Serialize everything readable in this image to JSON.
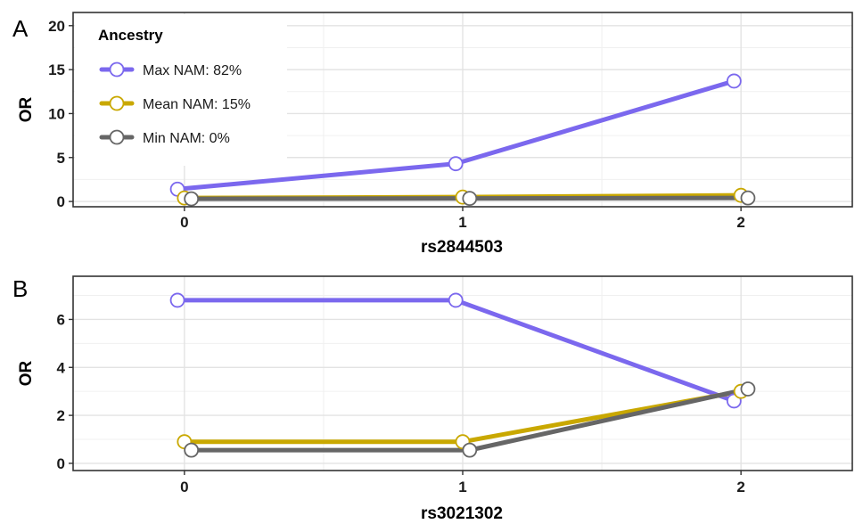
{
  "chart_data": [
    {
      "panel": "A",
      "type": "line",
      "xlabel": "rs2844503",
      "ylabel": "OR",
      "categories": [
        "0",
        "1",
        "2"
      ],
      "ylim": [
        -0.6,
        21.5
      ],
      "yticks": [
        0,
        5,
        10,
        15,
        20
      ],
      "grid": true,
      "legend": {
        "title": "Ancestry",
        "placement": "top-left",
        "entries": [
          "Max NAM: 82%",
          "Mean NAM: 15%",
          "Min NAM: 0%"
        ]
      },
      "series": [
        {
          "name": "Max NAM: 82%",
          "color": "#7B68EE",
          "values": [
            1.4,
            4.3,
            13.7
          ]
        },
        {
          "name": "Mean NAM: 15%",
          "color": "#C9A800",
          "values": [
            0.4,
            0.5,
            0.7
          ]
        },
        {
          "name": "Min NAM: 0%",
          "color": "#666666",
          "values": [
            0.3,
            0.35,
            0.4
          ]
        }
      ]
    },
    {
      "panel": "B",
      "type": "line",
      "xlabel": "rs3021302",
      "ylabel": "OR",
      "categories": [
        "0",
        "1",
        "2"
      ],
      "ylim": [
        -0.3,
        7.8
      ],
      "yticks": [
        0,
        2,
        4,
        6
      ],
      "grid": true,
      "series": [
        {
          "name": "Max NAM: 82%",
          "color": "#7B68EE",
          "values": [
            6.8,
            6.8,
            2.6
          ]
        },
        {
          "name": "Mean NAM: 15%",
          "color": "#C9A800",
          "values": [
            0.9,
            0.9,
            3.0
          ]
        },
        {
          "name": "Min NAM: 0%",
          "color": "#666666",
          "values": [
            0.55,
            0.55,
            3.1
          ]
        }
      ]
    }
  ]
}
